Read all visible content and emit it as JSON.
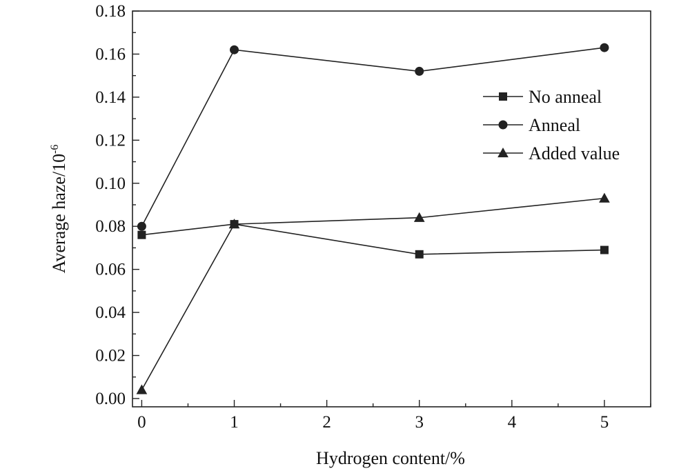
{
  "chart_data": {
    "type": "line",
    "title": "",
    "xlabel": "Hydrogen content/%",
    "ylabel": "Average haze/10",
    "ylabel_superscript": "-6",
    "xlim": [
      -0.1,
      5.5
    ],
    "ylim": [
      0.0,
      0.18
    ],
    "x_ticks": [
      "0",
      "1",
      "2",
      "3",
      "4",
      "5"
    ],
    "x_tick_values": [
      0,
      1,
      2,
      3,
      4,
      5
    ],
    "x_minor_tick_values": [
      0.5,
      1.5,
      2.5,
      3.5,
      4.5,
      5.5
    ],
    "y_ticks": [
      "0.00",
      "0.02",
      "0.04",
      "0.06",
      "0.08",
      "0.10",
      "0.12",
      "0.14",
      "0.16",
      "0.18"
    ],
    "y_tick_values": [
      0.0,
      0.02,
      0.04,
      0.06,
      0.08,
      0.1,
      0.12,
      0.14,
      0.16,
      0.18
    ],
    "y_minor_tick_values": [
      0.01,
      0.03,
      0.05,
      0.07,
      0.09,
      0.11,
      0.13,
      0.15,
      0.17
    ],
    "grid": false,
    "legend_position": "top-right",
    "colors": {
      "line": "#222222",
      "text": "#111111"
    },
    "series": [
      {
        "name": "No anneal",
        "marker": "square",
        "x": [
          0,
          1,
          3,
          5
        ],
        "y": [
          0.076,
          0.081,
          0.067,
          0.069
        ]
      },
      {
        "name": "Anneal",
        "marker": "circle",
        "x": [
          0,
          1,
          3,
          5
        ],
        "y": [
          0.08,
          0.162,
          0.152,
          0.163
        ]
      },
      {
        "name": "Added value",
        "marker": "triangle",
        "x": [
          0,
          1,
          3,
          5
        ],
        "y": [
          0.004,
          0.081,
          0.084,
          0.093
        ]
      }
    ]
  }
}
